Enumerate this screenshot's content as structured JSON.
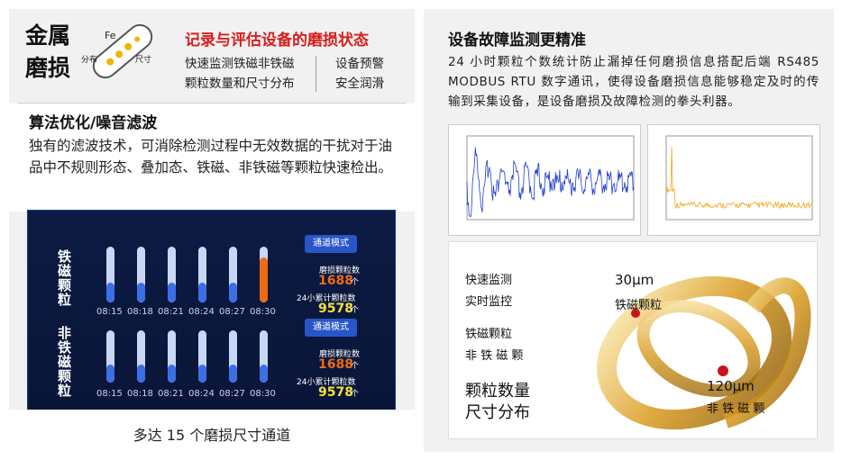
{
  "left": {
    "title_lines": [
      "金属",
      "磨损"
    ],
    "icon": {
      "center": "Fe",
      "left": "分布",
      "right": "尺寸"
    },
    "headline": "记录与评估设备的磨损状态",
    "features": [
      [
        "快速监测铁磁非铁磁",
        "设备预警"
      ],
      [
        "颗粒数量和尺寸分布",
        "安全润滑"
      ]
    ],
    "section_title": "算法优化/噪音滤波",
    "section_text": "独有的滤波技术，可消除检测过程中无效数据的干扰对于油品中不规则形态、叠加态、铁磁、非铁磁等颗粒快速检出。",
    "dashboard": [
      {
        "label": "铁磁颗粒",
        "times": [
          "08:15",
          "08:18",
          "08:21",
          "08:24",
          "08:27",
          "08:30"
        ],
        "mode_button": "通道模式",
        "count_label": "磨损颗粒数",
        "count": "1688",
        "count_unit": "个",
        "total_label": "24小累计颗粒数",
        "total": "9578",
        "total_unit": "个"
      },
      {
        "label": "非铁磁颗粒",
        "times": [
          "08:15",
          "08:18",
          "08:21",
          "08:24",
          "08:27",
          "08:30"
        ],
        "mode_button": "通道模式",
        "count_label": "磨损颗粒数",
        "count": "1688",
        "count_unit": "个",
        "total_label": "24小累计颗粒数",
        "total": "9578",
        "total_unit": "个"
      }
    ],
    "caption": "多达 15 个磨损尺寸通道"
  },
  "right": {
    "title": "设备故障监测更精准",
    "text": "24 小时颗粒个数统计防止漏掉任何磨损信息搭配后端 RS485 MODBUS RTU 数字通讯，使得设备磨损信息能够稳定及时的传输到采集设备，是设备磨损及故障检测的拳头利器。",
    "labels": [
      "快速监测",
      "实时监控",
      "铁磁颗粒",
      "非 铁 磁 颗"
    ],
    "big_labels": [
      "颗粒数量",
      "尺寸分布"
    ],
    "callouts": [
      {
        "size": "30μm",
        "kind": "铁磁颗粒"
      },
      {
        "size": "120μm",
        "kind": "非 铁 磁 颗"
      }
    ]
  }
}
